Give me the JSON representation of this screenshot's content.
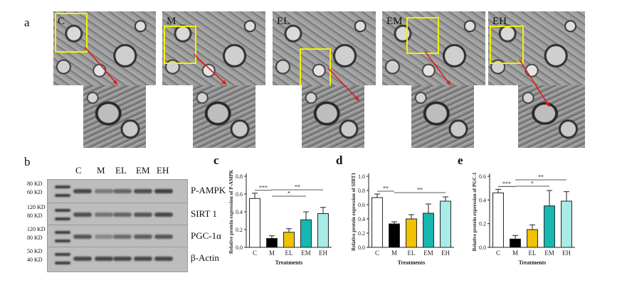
{
  "panel_a": {
    "letter": "a",
    "tiles": [
      {
        "label": "C"
      },
      {
        "label": "M"
      },
      {
        "label": "EL"
      },
      {
        "label": "EM"
      },
      {
        "label": "EH"
      }
    ]
  },
  "panel_b": {
    "letter": "b",
    "lanes": [
      "C",
      "M",
      "EL",
      "EM",
      "EH"
    ],
    "rows": [
      {
        "protein": "P-AMPK",
        "kd_top": "80 KD",
        "kd_bottom": "60 KD",
        "band_strength": [
          0.8,
          0.45,
          0.6,
          0.75,
          0.85
        ]
      },
      {
        "protein": "SIRT 1",
        "kd_top": "120 KD",
        "kd_bottom": "80 KD",
        "band_strength": [
          0.75,
          0.5,
          0.6,
          0.7,
          0.8
        ]
      },
      {
        "protein": "PGC-1α",
        "kd_top": "120 KD",
        "kd_bottom": "80 KD",
        "band_strength": [
          0.7,
          0.35,
          0.55,
          0.65,
          0.7
        ]
      },
      {
        "protein": "β-Actin",
        "kd_top": "50 KD",
        "kd_bottom": "40 KD",
        "band_strength": [
          0.8,
          0.8,
          0.8,
          0.8,
          0.8
        ]
      }
    ]
  },
  "colors": {
    "C": "#ffffff",
    "M": "#000000",
    "EL": "#f2c200",
    "EM": "#17b8b0",
    "EH": "#a8ece8"
  },
  "chart_data": [
    {
      "letter": "c",
      "type": "bar",
      "categories": [
        "C",
        "M",
        "EL",
        "EM",
        "EH"
      ],
      "values": [
        0.55,
        0.1,
        0.17,
        0.31,
        0.38
      ],
      "errors": [
        0.06,
        0.03,
        0.04,
        0.09,
        0.07
      ],
      "ylim": [
        0,
        0.8
      ],
      "yticks": [
        "0.0",
        "0.2",
        "0.4",
        "0.6",
        "0.8"
      ],
      "ylabel": "Relative protein expression of P-AMPK",
      "xlabel": "Treatments",
      "significance": [
        {
          "from": "C",
          "to": "M",
          "label": "***"
        },
        {
          "from": "M",
          "to": "EM",
          "label": "*"
        },
        {
          "from": "M",
          "to": "EH",
          "label": "**"
        }
      ]
    },
    {
      "letter": "d",
      "type": "bar",
      "categories": [
        "C",
        "M",
        "EL",
        "EM",
        "EH"
      ],
      "values": [
        0.7,
        0.33,
        0.4,
        0.48,
        0.65
      ],
      "errors": [
        0.05,
        0.03,
        0.06,
        0.13,
        0.06
      ],
      "ylim": [
        0,
        1.0
      ],
      "yticks": [
        "0.0",
        "0.2",
        "0.4",
        "0.6",
        "0.8",
        "1.0"
      ],
      "ylabel": "Relative protein expression of SIRT1",
      "xlabel": "Treatments",
      "significance": [
        {
          "from": "C",
          "to": "M",
          "label": "**"
        },
        {
          "from": "M",
          "to": "EH",
          "label": "**"
        }
      ]
    },
    {
      "letter": "e",
      "type": "bar",
      "categories": [
        "C",
        "M",
        "EL",
        "EM",
        "EH"
      ],
      "values": [
        0.46,
        0.07,
        0.15,
        0.35,
        0.39
      ],
      "errors": [
        0.03,
        0.03,
        0.04,
        0.13,
        0.08
      ],
      "ylim": [
        0,
        0.6
      ],
      "yticks": [
        "0.0",
        "0.2",
        "0.4",
        "0.6"
      ],
      "ylabel": "Relative protein expression of PGC-1",
      "xlabel": "Treatments",
      "significance": [
        {
          "from": "C",
          "to": "M",
          "label": "***"
        },
        {
          "from": "M",
          "to": "EM",
          "label": "*"
        },
        {
          "from": "M",
          "to": "EH",
          "label": "**"
        }
      ]
    }
  ]
}
